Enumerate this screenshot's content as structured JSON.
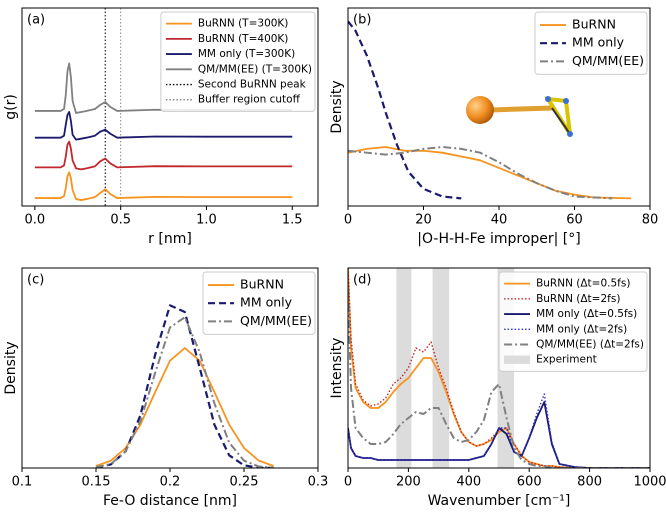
{
  "chart_data": [
    {
      "type": "line",
      "panel_label": "(a)",
      "xlabel": "r [nm]",
      "ylabel": "g(r)",
      "xlim": [
        -0.075,
        1.65
      ],
      "xticks": [
        {
          "value": 0,
          "label": "0.0"
        },
        0.5,
        {
          "value": 1,
          "label": "1.0"
        },
        1.5
      ],
      "ylim": [
        0,
        10
      ],
      "legend": "upper right",
      "x": [
        0,
        0.1,
        0.15,
        0.17,
        0.18,
        0.19,
        0.2,
        0.21,
        0.22,
        0.24,
        0.27,
        0.3,
        0.35,
        0.38,
        0.41,
        0.44,
        0.48,
        0.55,
        0.7,
        1.0,
        1.5
      ],
      "series": [
        {
          "name": "BuRNN (T=300K)",
          "color": "#f7931e",
          "linestyle": "solid",
          "values": [
            0.4,
            0.4,
            0.4,
            0.5,
            0.9,
            1.5,
            1.7,
            1.4,
            0.8,
            0.35,
            0.3,
            0.35,
            0.45,
            0.65,
            0.85,
            0.6,
            0.4,
            0.42,
            0.46,
            0.45,
            0.45
          ]
        },
        {
          "name": "BuRNN (T=400K)",
          "color": "#c1272d",
          "linestyle": "solid",
          "values": [
            1.95,
            1.95,
            1.95,
            2.05,
            2.5,
            3.1,
            3.25,
            2.9,
            2.3,
            1.9,
            1.85,
            1.9,
            2.0,
            2.25,
            2.4,
            2.15,
            1.95,
            1.97,
            2.01,
            2.0,
            2.0
          ]
        },
        {
          "name": "MM only (T=300K)",
          "color": "#1a1a6e",
          "linestyle": "solid",
          "values": [
            3.45,
            3.45,
            3.45,
            3.55,
            4.1,
            4.6,
            4.75,
            4.3,
            3.6,
            3.35,
            3.4,
            3.45,
            3.55,
            3.75,
            3.85,
            3.65,
            3.45,
            3.47,
            3.51,
            3.5,
            3.5
          ]
        },
        {
          "name": "QM/MM(EE) (T=300K)",
          "color": "#808080",
          "linestyle": "solid",
          "values": [
            4.8,
            4.8,
            4.8,
            4.9,
            5.6,
            6.8,
            7.2,
            6.5,
            5.3,
            4.7,
            4.75,
            4.8,
            4.9,
            5.1,
            5.25,
            5.0,
            4.8,
            4.82,
            4.86,
            4.85,
            4.85
          ]
        }
      ],
      "vlines": [
        {
          "name": "Second BuRNN peak",
          "value": 0.41,
          "color": "#000000",
          "linestyle": "dotted"
        },
        {
          "name": "Buffer region cutoff",
          "value": 0.5,
          "color": "#888888",
          "linestyle": "dotted"
        }
      ]
    },
    {
      "type": "line",
      "panel_label": "(b)",
      "xlabel": "|O-H-H-Fe improper| [°]",
      "ylabel": "Density",
      "xlim": [
        0,
        80
      ],
      "xticks": [
        0,
        20,
        40,
        60,
        80
      ],
      "ylim": [
        -0.004,
        0.1
      ],
      "legend": "upper right",
      "series": [
        {
          "name": "BuRNN",
          "color": "#f7931e",
          "linestyle": "solid",
          "x": [
            0,
            5,
            10,
            15,
            20,
            25,
            30,
            35,
            40,
            45,
            50,
            55,
            60,
            65,
            75
          ],
          "values": [
            0.024,
            0.026,
            0.027,
            0.025,
            0.025,
            0.024,
            0.022,
            0.02,
            0.016,
            0.012,
            0.008,
            0.004,
            0.002,
            0.0005,
            0
          ]
        },
        {
          "name": "MM only",
          "color": "#1a1a6e",
          "linestyle": "dashed",
          "x": [
            0,
            2,
            5,
            8,
            10,
            13,
            16,
            20,
            25,
            30
          ],
          "values": [
            0.093,
            0.088,
            0.075,
            0.058,
            0.045,
            0.028,
            0.014,
            0.005,
            0.001,
            0
          ]
        },
        {
          "name": "QM/MM(EE)",
          "color": "#808080",
          "linestyle": "dashdot",
          "x": [
            0,
            5,
            10,
            15,
            20,
            25,
            30,
            35,
            40,
            45,
            50,
            55,
            60,
            70
          ],
          "values": [
            0.025,
            0.024,
            0.023,
            0.024,
            0.026,
            0.027,
            0.026,
            0.024,
            0.019,
            0.013,
            0.008,
            0.004,
            0.001,
            0
          ]
        }
      ]
    },
    {
      "type": "line",
      "panel_label": "(c)",
      "xlabel": "Fe-O distance [nm]",
      "ylabel": "Density",
      "xlim": [
        0.1,
        0.3
      ],
      "xticks": [
        0.1,
        0.15,
        0.2,
        0.25,
        0.3
      ],
      "ylim": [
        0,
        30
      ],
      "legend": "upper right",
      "x": [
        0.15,
        0.16,
        0.17,
        0.18,
        0.19,
        0.2,
        0.21,
        0.22,
        0.23,
        0.24,
        0.25,
        0.26,
        0.27
      ],
      "series": [
        {
          "name": "BuRNN",
          "color": "#f7931e",
          "linestyle": "solid",
          "values": [
            0.3,
            1.1,
            3.0,
            6.5,
            11.4,
            16.1,
            18,
            16.1,
            11.4,
            6.5,
            3.0,
            1.1,
            0.3
          ]
        },
        {
          "name": "MM only",
          "color": "#1a1a6e",
          "linestyle": "dashed",
          "values": [
            0.07,
            0.53,
            2.5,
            7.9,
            17.0,
            24.4,
            23.4,
            15.1,
            6.5,
            1.9,
            0.4,
            0.05,
            0
          ]
        },
        {
          "name": "QM/MM(EE)",
          "color": "#808080",
          "linestyle": "dashdot",
          "values": [
            0.11,
            0.6,
            2.5,
            7.0,
            14.3,
            21.1,
            22.6,
            17.4,
            9.7,
            3.8,
            1.1,
            0.22,
            0.03
          ]
        }
      ]
    },
    {
      "type": "line",
      "panel_label": "(d)",
      "xlabel": "Wavenumber [cm⁻¹]",
      "ylabel": "Intensity",
      "xlim": [
        0,
        1000
      ],
      "xticks": [
        0,
        200,
        400,
        600,
        800,
        1000
      ],
      "ylim": [
        0,
        1
      ],
      "legend": "upper right",
      "x": [
        0,
        10,
        25,
        50,
        75,
        100,
        125,
        150,
        175,
        200,
        225,
        250,
        275,
        300,
        325,
        350,
        375,
        400,
        425,
        450,
        475,
        500,
        525,
        550,
        575,
        600,
        625,
        650,
        675,
        700,
        750,
        800,
        900,
        1000
      ],
      "series": [
        {
          "name": "BuRNN (Δt=0.5fs)",
          "color": "#f7931e",
          "linestyle": "solid",
          "values": [
            1.0,
            0.6,
            0.4,
            0.33,
            0.3,
            0.3,
            0.33,
            0.38,
            0.42,
            0.45,
            0.5,
            0.55,
            0.55,
            0.48,
            0.38,
            0.27,
            0.18,
            0.13,
            0.11,
            0.12,
            0.14,
            0.18,
            0.2,
            0.12,
            0.06,
            0.03,
            0.02,
            0.01,
            0.01,
            0.005,
            0,
            0,
            0,
            0
          ]
        },
        {
          "name": "BuRNN (Δt=2fs)",
          "color": "#c1272d",
          "linestyle": "dotted",
          "values": [
            1.0,
            0.65,
            0.42,
            0.34,
            0.31,
            0.32,
            0.35,
            0.42,
            0.45,
            0.5,
            0.6,
            0.58,
            0.63,
            0.5,
            0.4,
            0.28,
            0.18,
            0.13,
            0.11,
            0.12,
            0.15,
            0.19,
            0.2,
            0.12,
            0.06,
            0.03,
            0.02,
            0.01,
            0.01,
            0.005,
            0,
            0,
            0,
            0
          ]
        },
        {
          "name": "MM only (Δt=0.5fs)",
          "color": "#1a1a6e",
          "linestyle": "solid",
          "values": [
            0.2,
            0.1,
            0.06,
            0.05,
            0.05,
            0.04,
            0.04,
            0.04,
            0.04,
            0.04,
            0.04,
            0.04,
            0.04,
            0.04,
            0.04,
            0.04,
            0.04,
            0.04,
            0.05,
            0.06,
            0.12,
            0.2,
            0.17,
            0.08,
            0.06,
            0.15,
            0.25,
            0.33,
            0.12,
            0.02,
            0.005,
            0,
            0,
            0
          ]
        },
        {
          "name": "MM only (Δt=2fs)",
          "color": "#3333cc",
          "linestyle": "dotted",
          "values": [
            0.2,
            0.1,
            0.06,
            0.05,
            0.05,
            0.04,
            0.04,
            0.04,
            0.04,
            0.04,
            0.04,
            0.04,
            0.04,
            0.04,
            0.04,
            0.04,
            0.04,
            0.04,
            0.05,
            0.06,
            0.12,
            0.2,
            0.2,
            0.08,
            0.06,
            0.15,
            0.27,
            0.37,
            0.13,
            0.02,
            0.005,
            0,
            0,
            0
          ]
        },
        {
          "name": "QM/MM(EE) (Δt=2fs)",
          "color": "#808080",
          "linestyle": "dashdot",
          "values": [
            0.9,
            0.4,
            0.2,
            0.15,
            0.12,
            0.12,
            0.13,
            0.17,
            0.22,
            0.25,
            0.28,
            0.27,
            0.3,
            0.3,
            0.22,
            0.15,
            0.13,
            0.14,
            0.18,
            0.24,
            0.38,
            0.42,
            0.25,
            0.1,
            0.04,
            0.02,
            0.01,
            0.01,
            0,
            0,
            0,
            0,
            0,
            0
          ]
        }
      ],
      "experiment": {
        "name": "Experiment",
        "color": "#dcdcdc",
        "bands": [
          [
            160,
            210
          ],
          [
            280,
            335
          ],
          [
            495,
            550
          ]
        ]
      }
    }
  ]
}
